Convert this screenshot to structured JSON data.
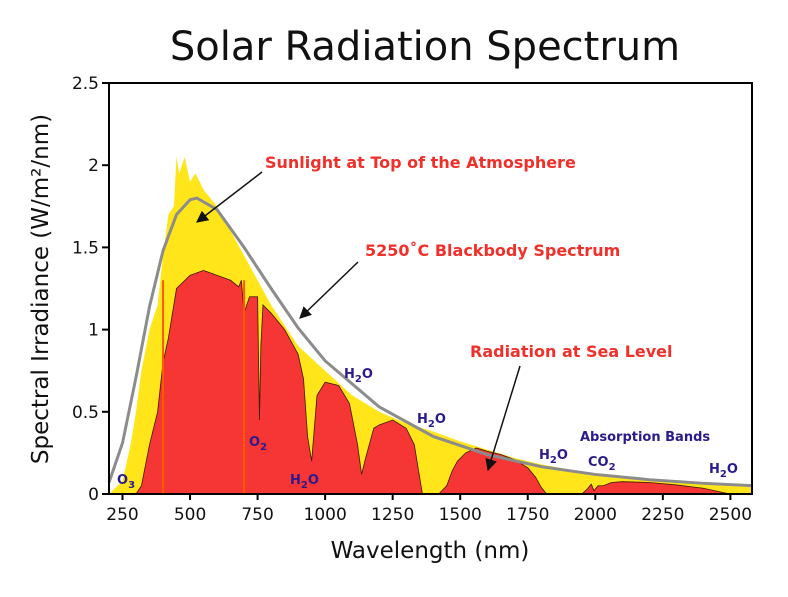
{
  "chart_data": {
    "type": "area",
    "title": "Solar Radiation Spectrum",
    "xlabel": "Wavelength (nm)",
    "ylabel": "Spectral Irradiance (W/m²/nm)",
    "xlim": [
      200,
      2580
    ],
    "ylim": [
      0,
      2.5
    ],
    "xticks": [
      250,
      500,
      750,
      1000,
      1250,
      1500,
      1750,
      2000,
      2250,
      2500
    ],
    "yticks": [
      0,
      0.5,
      1,
      1.5,
      2,
      2.5
    ],
    "ytick_labels": [
      "0",
      "0.5",
      "1",
      "1.5",
      "2",
      "2.5"
    ],
    "grid": false,
    "colors": {
      "toa": "#ffe51a",
      "sea": "#f63535",
      "blackbody": "#8c8c8c",
      "annotation": "#f0302a",
      "absorption": "#2a1b8c",
      "marker_lines": "#ff5a00"
    },
    "series": [
      {
        "name": "Sunlight at Top of the Atmosphere",
        "x": [
          200,
          250,
          280,
          300,
          320,
          350,
          380,
          400,
          420,
          440,
          450,
          460,
          480,
          500,
          520,
          550,
          600,
          650,
          700,
          750,
          800,
          900,
          1000,
          1100,
          1200,
          1300,
          1400,
          1500,
          1600,
          1700,
          1800,
          2000,
          2200,
          2400,
          2580
        ],
        "y": [
          0,
          0.08,
          0.3,
          0.5,
          0.75,
          1.0,
          1.15,
          1.45,
          1.7,
          1.75,
          2.05,
          1.95,
          2.05,
          1.9,
          1.95,
          1.85,
          1.75,
          1.6,
          1.45,
          1.3,
          1.15,
          0.9,
          0.75,
          0.6,
          0.5,
          0.43,
          0.38,
          0.32,
          0.27,
          0.22,
          0.18,
          0.12,
          0.09,
          0.07,
          0.05
        ]
      },
      {
        "name": "Radiation at Sea Level",
        "x": [
          300,
          320,
          350,
          380,
          400,
          420,
          450,
          500,
          550,
          600,
          650,
          680,
          690,
          700,
          720,
          750,
          757,
          762,
          770,
          800,
          850,
          900,
          920,
          935,
          950,
          970,
          1000,
          1050,
          1090,
          1120,
          1135,
          1150,
          1180,
          1200,
          1250,
          1300,
          1330,
          1350,
          1360,
          1420,
          1450,
          1470,
          1490,
          1520,
          1560,
          1600,
          1650,
          1700,
          1750,
          1780,
          1800,
          1820,
          1950,
          1970,
          1985,
          1995,
          2010,
          2030,
          2060,
          2100,
          2200,
          2300,
          2400,
          2470,
          2500
        ],
        "y": [
          0,
          0.05,
          0.3,
          0.5,
          0.8,
          0.95,
          1.25,
          1.33,
          1.36,
          1.33,
          1.3,
          1.26,
          1.3,
          1.1,
          1.2,
          1.2,
          0.45,
          0.9,
          1.15,
          1.1,
          1.0,
          0.85,
          0.7,
          0.35,
          0.2,
          0.6,
          0.68,
          0.66,
          0.55,
          0.3,
          0.12,
          0.22,
          0.4,
          0.42,
          0.45,
          0.4,
          0.3,
          0.1,
          0,
          0,
          0.05,
          0.14,
          0.2,
          0.25,
          0.28,
          0.26,
          0.24,
          0.21,
          0.16,
          0.1,
          0.04,
          0,
          0,
          0.03,
          0.06,
          0.02,
          0.05,
          0.05,
          0.07,
          0.075,
          0.07,
          0.055,
          0.035,
          0.01,
          0
        ]
      },
      {
        "name": "5250˚C Blackbody Spectrum",
        "x": [
          200,
          250,
          300,
          350,
          400,
          450,
          500,
          525,
          600,
          700,
          800,
          900,
          1000,
          1200,
          1400,
          1600,
          1800,
          2000,
          2200,
          2400,
          2580
        ],
        "y": [
          0.07,
          0.31,
          0.71,
          1.14,
          1.48,
          1.7,
          1.79,
          1.8,
          1.73,
          1.5,
          1.25,
          1.01,
          0.81,
          0.53,
          0.35,
          0.24,
          0.166,
          0.119,
          0.087,
          0.065,
          0.051
        ]
      }
    ],
    "marker_lines_x": [
      400,
      700
    ],
    "annotations": [
      {
        "text": "Sunlight at Top of the Atmosphere",
        "points_to": [
          480,
          1.6
        ]
      },
      {
        "text": "5250˚C Blackbody Spectrum",
        "points_to": [
          900,
          1.07
        ]
      },
      {
        "text": "Radiation at Sea Level",
        "points_to": [
          1600,
          0.13
        ]
      }
    ],
    "absorption_title": "Absorption Bands",
    "absorption_labels": [
      {
        "base": "O",
        "sub": "3",
        "rest": ""
      },
      {
        "base": "O",
        "sub": "2",
        "rest": ""
      },
      {
        "base": "H",
        "sub": "2",
        "rest": "O"
      },
      {
        "base": "H",
        "sub": "2",
        "rest": "O"
      },
      {
        "base": "H",
        "sub": "2",
        "rest": "O"
      },
      {
        "base": "H",
        "sub": "2",
        "rest": "O"
      },
      {
        "base": "CO",
        "sub": "2",
        "rest": ""
      },
      {
        "base": "H",
        "sub": "2",
        "rest": "O"
      }
    ]
  }
}
